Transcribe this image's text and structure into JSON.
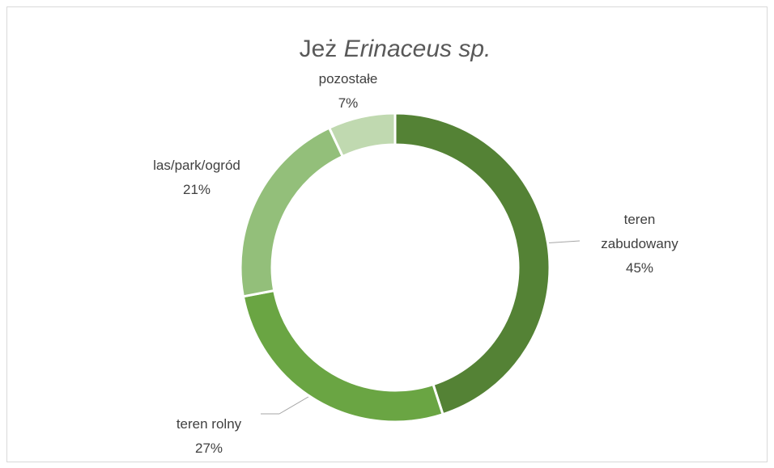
{
  "chart_data": {
    "type": "donut",
    "title": [
      "Jeż",
      "Erinaceus sp."
    ],
    "categories": [
      "teren zabudowany",
      "teren rolny",
      "las/park/ogród",
      "pozostałe"
    ],
    "values": [
      45,
      27,
      21,
      7
    ],
    "value_labels": [
      "45%",
      "27%",
      "21%",
      "7%"
    ],
    "colors": [
      "#548235",
      "#6aa543",
      "#93bf7a",
      "#c0d9b0"
    ]
  }
}
